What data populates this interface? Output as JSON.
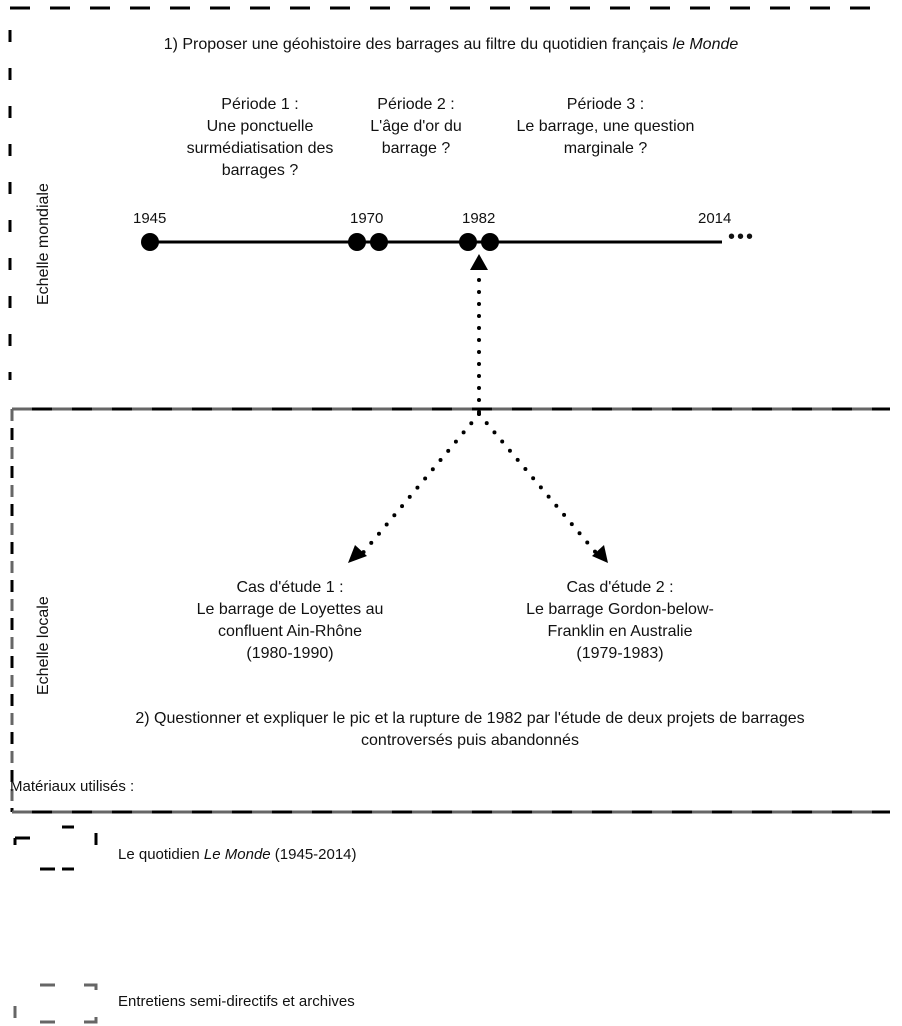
{
  "top_header": {
    "prefix": "1) Proposer une géohistoire des barrages au filtre du quotidien français ",
    "italic": "le Monde"
  },
  "scale_labels": {
    "global": "Echelle mondiale",
    "local": "Echelle locale"
  },
  "periods": [
    {
      "title": "Période 1 :",
      "text": "Une ponctuelle surmédiatisation des barrages ?"
    },
    {
      "title": "Période 2 :",
      "text": "L'âge d'or du barrage ?"
    },
    {
      "title": "Période 3 :",
      "text": "Le barrage, une question marginale ?"
    }
  ],
  "timeline": {
    "years": [
      "1945",
      "1970",
      "1982",
      "2014"
    ],
    "ellipsis": "•••"
  },
  "case_studies": [
    {
      "title": "Cas d'étude 1 :",
      "name": "Le barrage de Loyettes au confluent Ain-Rhône",
      "years": "(1980-1990)"
    },
    {
      "title": "Cas d'étude 2 :",
      "name": "Le barrage Gordon-below-Franklin en Australie",
      "years": "(1979-1983)"
    }
  ],
  "bottom_header": "2) Questionner et expliquer le pic et la rupture de 1982 par l'étude de deux projets de barrages controversés puis abandonnés",
  "legend": {
    "title": "Matériaux utilisés :",
    "items": [
      {
        "prefix": "Le quotidien ",
        "italic": "Le Monde",
        "suffix": " (1945-2014)",
        "style": "black-dash"
      },
      {
        "prefix": "Entretiens semi-directifs et archives",
        "italic": "",
        "suffix": "",
        "style": "gray-dash"
      }
    ]
  },
  "colors": {
    "black_dash": "#000000",
    "gray_dash": "#666666"
  }
}
